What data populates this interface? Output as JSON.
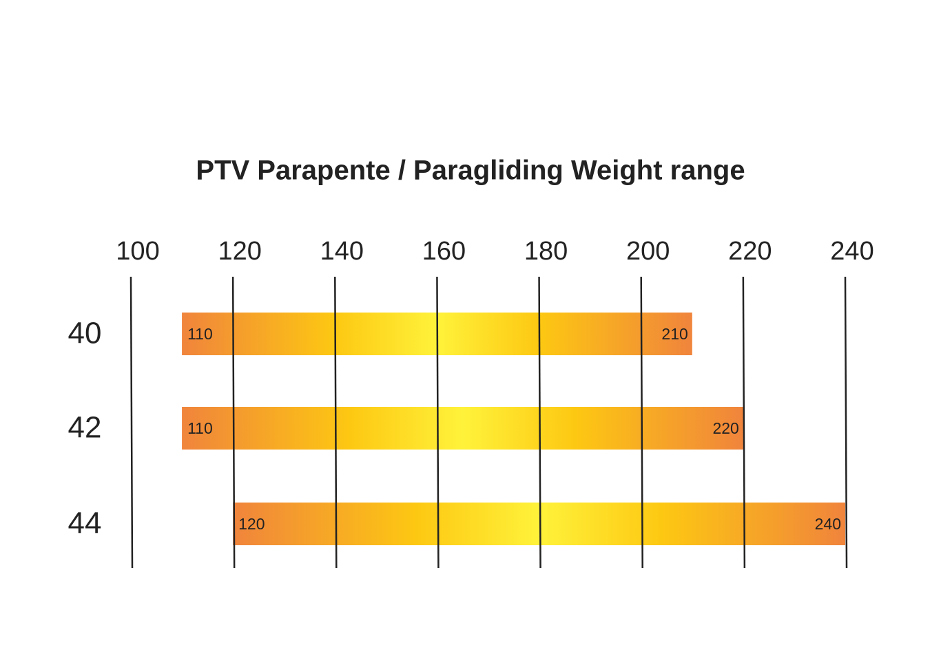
{
  "chart_data": {
    "type": "range-bar",
    "title": "PTV Parapente / Paragliding Weight range",
    "categories": [
      "40",
      "42",
      "44"
    ],
    "low": [
      110,
      110,
      120
    ],
    "high": [
      210,
      220,
      240
    ],
    "xlim": [
      100,
      240
    ],
    "xticks": [
      100,
      120,
      140,
      160,
      180,
      200,
      220,
      240
    ],
    "grid": true,
    "colors": [
      "#f0843c",
      "#fdc812",
      "#fff23a"
    ]
  }
}
